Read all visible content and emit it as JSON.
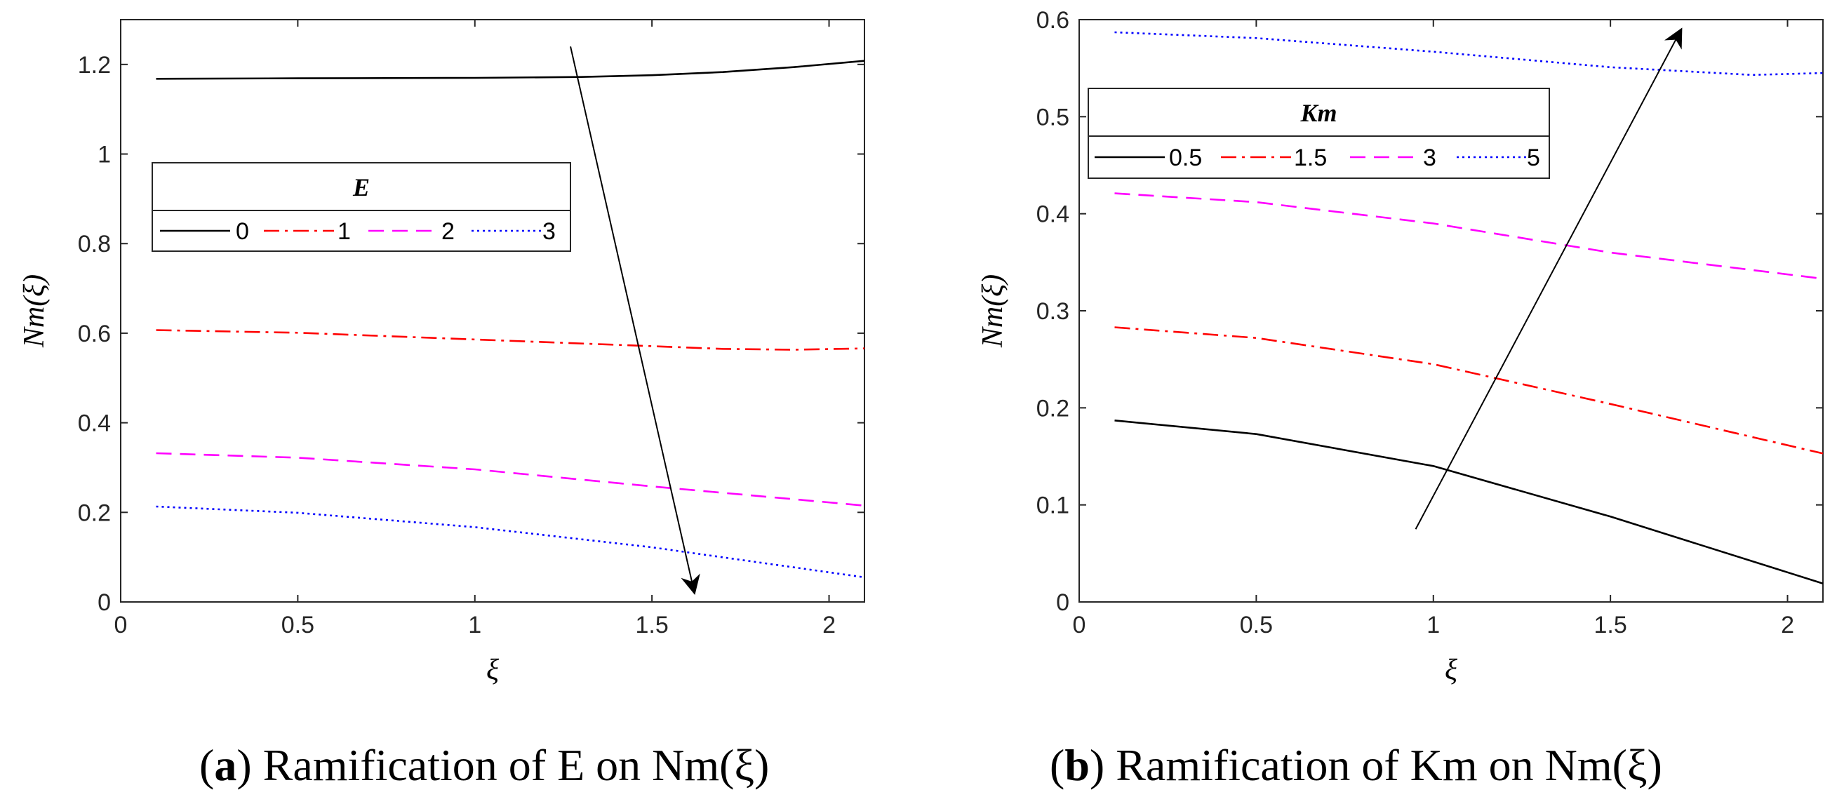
{
  "chart_data": [
    {
      "type": "line",
      "panel": "a",
      "caption": {
        "tag": "a",
        "text": "Ramification of E on Nm(ξ)"
      },
      "xlabel": "ξ",
      "ylabel": "Nm(ξ)",
      "xlim": [
        0,
        2.1
      ],
      "ylim": [
        0,
        1.3
      ],
      "xticks": [
        0,
        0.5,
        1,
        1.5,
        2
      ],
      "xtick_labels": [
        "0",
        "0.5",
        "1",
        "1.5",
        "2"
      ],
      "yticks": [
        0,
        0.2,
        0.4,
        0.6,
        0.8,
        1,
        1.2
      ],
      "ytick_labels": [
        "0",
        "0.2",
        "0.4",
        "0.6",
        "0.8",
        "1",
        "1.2"
      ],
      "legend": {
        "title": "E",
        "location": "upper-left",
        "orientation": "horizontal"
      },
      "annotation": {
        "type": "arrow",
        "from": [
          1.27,
          1.24
        ],
        "to": [
          1.62,
          0.02
        ],
        "meaning": "increasing E"
      },
      "series": [
        {
          "name": "0",
          "color": "#000000",
          "style": "solid",
          "x": [
            0.1,
            0.5,
            1.0,
            1.3,
            1.5,
            1.7,
            1.9,
            2.1
          ],
          "y": [
            1.168,
            1.169,
            1.17,
            1.172,
            1.176,
            1.183,
            1.194,
            1.208
          ]
        },
        {
          "name": "1",
          "color": "#ff0000",
          "style": "dashdot",
          "x": [
            0.1,
            0.5,
            1.0,
            1.5,
            1.7,
            1.9,
            2.1
          ],
          "y": [
            0.607,
            0.601,
            0.586,
            0.571,
            0.565,
            0.563,
            0.566
          ]
        },
        {
          "name": "2",
          "color": "#ff00ff",
          "style": "dashed",
          "x": [
            0.1,
            0.5,
            1.0,
            1.5,
            2.1
          ],
          "y": [
            0.332,
            0.322,
            0.296,
            0.258,
            0.215
          ]
        },
        {
          "name": "3",
          "color": "#0000ff",
          "style": "dotted",
          "x": [
            0.1,
            0.5,
            1.0,
            1.5,
            2.1
          ],
          "y": [
            0.213,
            0.199,
            0.167,
            0.122,
            0.055
          ]
        }
      ]
    },
    {
      "type": "line",
      "panel": "b",
      "caption": {
        "tag": "b",
        "text": "Ramification of Km on Nm(ξ)"
      },
      "xlabel": "ξ",
      "ylabel": "Nm(ξ)",
      "xlim": [
        0,
        2.1
      ],
      "ylim": [
        0,
        0.6
      ],
      "xticks": [
        0,
        0.5,
        1,
        1.5,
        2
      ],
      "xtick_labels": [
        "0",
        "0.5",
        "1",
        "1.5",
        "2"
      ],
      "yticks": [
        0,
        0.1,
        0.2,
        0.3,
        0.4,
        0.5,
        0.6
      ],
      "ytick_labels": [
        "0",
        "0.1",
        "0.2",
        "0.3",
        "0.4",
        "0.5",
        "0.6"
      ],
      "legend": {
        "title": "Km",
        "location": "upper-left",
        "orientation": "horizontal"
      },
      "annotation": {
        "type": "arrow",
        "from": [
          0.95,
          0.075
        ],
        "to": [
          1.7,
          0.59
        ],
        "meaning": "increasing Km"
      },
      "series": [
        {
          "name": "0.5",
          "color": "#000000",
          "style": "solid",
          "x": [
            0.1,
            0.5,
            1.0,
            1.5,
            2.1
          ],
          "y": [
            0.187,
            0.173,
            0.14,
            0.088,
            0.019
          ]
        },
        {
          "name": "1.5",
          "color": "#ff0000",
          "style": "dashdot",
          "x": [
            0.1,
            0.5,
            1.0,
            1.5,
            2.1
          ],
          "y": [
            0.283,
            0.272,
            0.245,
            0.204,
            0.153
          ]
        },
        {
          "name": "3",
          "color": "#ff00ff",
          "style": "dashed",
          "x": [
            0.1,
            0.5,
            1.0,
            1.5,
            2.1
          ],
          "y": [
            0.421,
            0.412,
            0.39,
            0.36,
            0.333
          ]
        },
        {
          "name": "5",
          "color": "#0000ff",
          "style": "dotted",
          "x": [
            0.1,
            0.5,
            1.0,
            1.5,
            1.9,
            2.1
          ],
          "y": [
            0.587,
            0.581,
            0.567,
            0.551,
            0.543,
            0.545
          ]
        }
      ]
    }
  ]
}
